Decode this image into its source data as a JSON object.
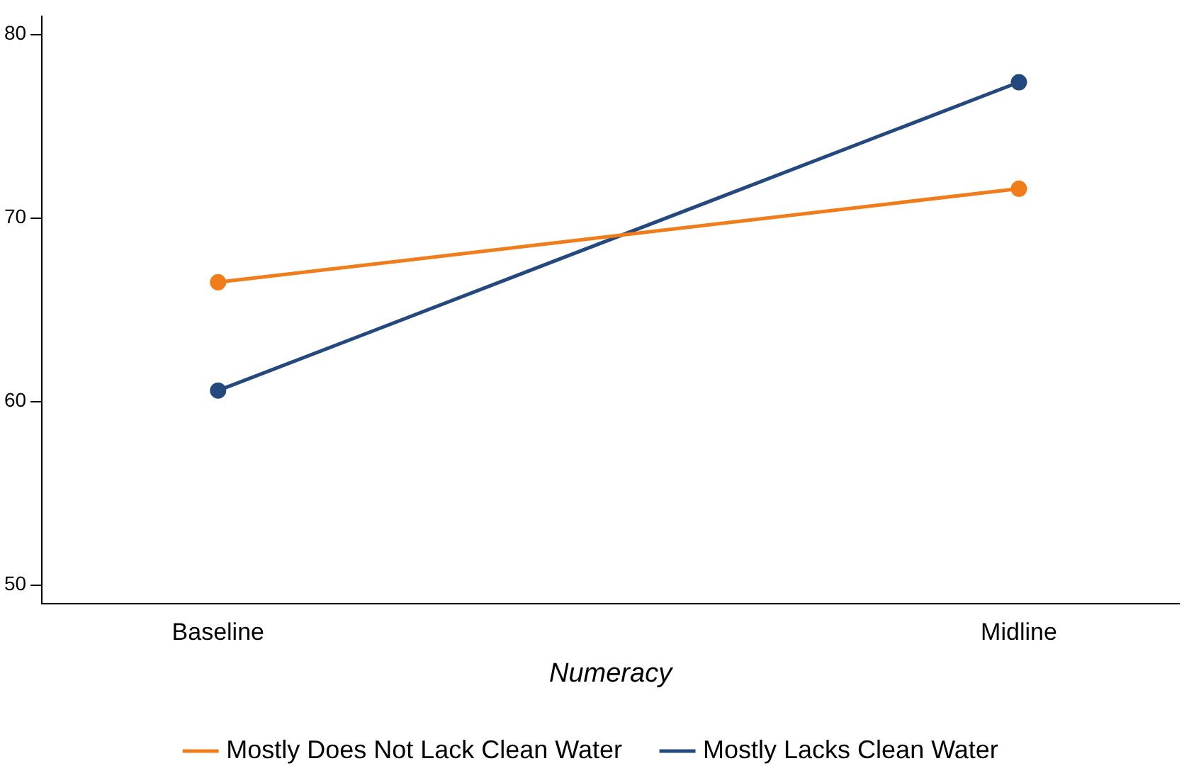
{
  "chart_data": {
    "type": "line",
    "xlabel": "Numeracy",
    "categories": [
      "Baseline",
      "Midline"
    ],
    "series": [
      {
        "name": "Mostly Does Not Lack Clean Water",
        "color": "#f07c1a",
        "values": [
          66.5,
          71.6
        ]
      },
      {
        "name": "Mostly Lacks Clean Water",
        "color": "#24497e",
        "values": [
          60.6,
          77.4
        ]
      }
    ],
    "ylim": [
      49,
      81
    ],
    "yticks": [
      50,
      60,
      70,
      80
    ],
    "grid": false,
    "legend": "bottom",
    "marker": "circle",
    "line_style": "solid"
  }
}
